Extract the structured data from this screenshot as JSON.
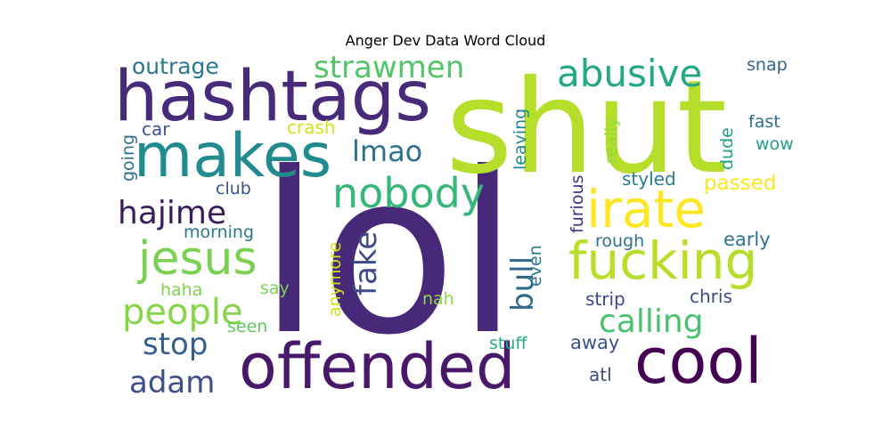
{
  "chart_data": {
    "type": "wordcloud",
    "title": "Anger Dev Data Word Cloud",
    "background": "#ffffff",
    "colormap": "viridis",
    "words": [
      {
        "text": "lol",
        "color": "#482878"
      },
      {
        "text": "shut",
        "color": "#b5de2b"
      },
      {
        "text": "hashtags",
        "color": "#472a7a"
      },
      {
        "text": "makes",
        "color": "#228b8d"
      },
      {
        "text": "offended",
        "color": "#48186a"
      },
      {
        "text": "cool",
        "color": "#440154"
      },
      {
        "text": "fucking",
        "color": "#b8de29"
      },
      {
        "text": "irate",
        "color": "#fde725"
      },
      {
        "text": "jesus",
        "color": "#7ad151"
      },
      {
        "text": "nobody",
        "color": "#35b779"
      },
      {
        "text": "abusive",
        "color": "#22a884"
      },
      {
        "text": "strawmen",
        "color": "#52c569"
      },
      {
        "text": "people",
        "color": "#86d549"
      },
      {
        "text": "calling",
        "color": "#4ac16d"
      },
      {
        "text": "stop",
        "color": "#355f8d"
      },
      {
        "text": "hajime",
        "color": "#3b1c5a"
      },
      {
        "text": "adam",
        "color": "#3e4c8a"
      },
      {
        "text": "bull",
        "color": "#31688e"
      },
      {
        "text": "fake",
        "color": "#3e4989"
      },
      {
        "text": "lmao",
        "color": "#2c728e"
      },
      {
        "text": "outrage",
        "color": "#2a788e"
      },
      {
        "text": "passed",
        "color": "#fde725"
      },
      {
        "text": "styled",
        "color": "#287d8e"
      },
      {
        "text": "early",
        "color": "#2c728e"
      },
      {
        "text": "rough",
        "color": "#2c728e"
      },
      {
        "text": "away",
        "color": "#3b528b"
      },
      {
        "text": "chris",
        "color": "#3e4989"
      },
      {
        "text": "strip",
        "color": "#414487"
      },
      {
        "text": "atl",
        "color": "#3e4a89"
      },
      {
        "text": "crash",
        "color": "#d2e21b"
      },
      {
        "text": "car",
        "color": "#3b528b"
      },
      {
        "text": "going",
        "color": "#2e6f8e"
      },
      {
        "text": "club",
        "color": "#3b528b"
      },
      {
        "text": "morning",
        "color": "#2a788e"
      },
      {
        "text": "haha",
        "color": "#7fd34e"
      },
      {
        "text": "say",
        "color": "#7ad151"
      },
      {
        "text": "seen",
        "color": "#5ec962"
      },
      {
        "text": "anymore",
        "color": "#d0e11c"
      },
      {
        "text": "nah",
        "color": "#8fd744"
      },
      {
        "text": "even",
        "color": "#2a788e"
      },
      {
        "text": "stuff",
        "color": "#25ac82"
      },
      {
        "text": "furious",
        "color": "#46327e"
      },
      {
        "text": "leaving",
        "color": "#25858e"
      },
      {
        "text": "really",
        "color": "#95d840"
      },
      {
        "text": "dude",
        "color": "#1fa088"
      },
      {
        "text": "snap",
        "color": "#33638d"
      },
      {
        "text": "fast",
        "color": "#2e6e8e"
      },
      {
        "text": "wow",
        "color": "#1f9e89"
      }
    ]
  }
}
